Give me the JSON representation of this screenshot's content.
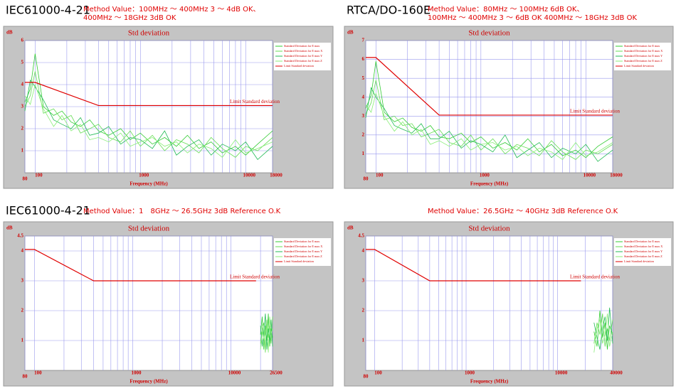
{
  "chart_data": [
    {
      "type": "line",
      "heading": "IEC61000-4-21",
      "subtitle": [
        "Method Value：100MHz ～ 400MHz 3 ～ 4dB OK、",
        "400MHz ～ 18GHz 3dB OK"
      ],
      "title": "Std deviation",
      "xlabel": "Frequency (MHz)",
      "ylabel": "dB",
      "xscale": "log",
      "grid": true,
      "xlim": [
        80,
        18000
      ],
      "xticks": [
        80,
        100,
        1000,
        10000,
        18000
      ],
      "minor_xticks": [
        200,
        300,
        400,
        500,
        600,
        700,
        800,
        900,
        2000,
        3000,
        4000,
        5000,
        6000,
        7000,
        8000,
        9000
      ],
      "ylim": [
        0,
        6
      ],
      "yticks": [
        1,
        2,
        3,
        4,
        5,
        6
      ],
      "x": [
        80,
        90,
        100,
        120,
        150,
        180,
        220,
        270,
        330,
        400,
        500,
        650,
        800,
        1000,
        1300,
        1700,
        2200,
        2800,
        3600,
        4700,
        6000,
        8000,
        10000,
        13000,
        18000
      ],
      "series": [
        {
          "name": "Standard Deviation for E max",
          "color": "#33cc33",
          "values": [
            3.2,
            3.8,
            5.4,
            3.0,
            2.6,
            2.8,
            2.3,
            2.1,
            2.4,
            1.9,
            1.7,
            2.0,
            1.5,
            1.8,
            1.3,
            1.6,
            1.2,
            1.7,
            1.1,
            1.4,
            0.9,
            1.2,
            0.8,
            1.3,
            1.9
          ]
        },
        {
          "name": "Standard Deviation for E max X",
          "color": "#66dd55",
          "values": [
            3.0,
            3.5,
            4.6,
            2.7,
            2.9,
            2.4,
            2.6,
            1.8,
            2.0,
            2.2,
            1.6,
            1.4,
            1.9,
            1.2,
            1.7,
            1.0,
            1.5,
            1.3,
            0.9,
            1.6,
            1.1,
            0.7,
            1.2,
            1.0,
            1.6
          ]
        },
        {
          "name": "Standard Deviation for E max Y",
          "color": "#22bb55",
          "values": [
            2.8,
            4.2,
            3.9,
            3.3,
            2.4,
            2.2,
            2.0,
            2.5,
            1.7,
            1.8,
            2.1,
            1.3,
            1.6,
            1.5,
            1.1,
            1.9,
            0.8,
            1.2,
            1.5,
            0.8,
            1.3,
            1.0,
            1.4,
            0.6,
            1.2
          ]
        },
        {
          "name": "Standard Deviation for E max Z",
          "color": "#88ee77",
          "values": [
            3.5,
            3.1,
            4.0,
            2.9,
            2.1,
            2.6,
            1.9,
            2.2,
            1.5,
            1.6,
            1.4,
            1.8,
            1.2,
            1.4,
            1.6,
            1.2,
            1.4,
            0.9,
            1.3,
            1.1,
            0.7,
            1.5,
            0.9,
            1.1,
            1.4
          ]
        }
      ],
      "limit": {
        "name": "Limit Standard deviation",
        "color": "#e00000",
        "x": [
          80,
          100,
          400,
          18000
        ],
        "values": [
          4.1,
          4.1,
          3.05,
          3.05
        ]
      },
      "annotation": "Limit Standard deviation"
    },
    {
      "type": "line",
      "heading": "RTCA/DO-160E",
      "subtitle": [
        "Method Value：80MHz ～ 100MHz 6dB OK、",
        "100MHz ～ 400MHz 3 ～ 6dB OK   400MHz ～ 18GHz 3dB OK"
      ],
      "title": "Std deviation",
      "xlabel": "Frequency (MHz)",
      "ylabel": "dB",
      "xscale": "log",
      "grid": true,
      "xlim": [
        80,
        18000
      ],
      "xticks": [
        80,
        100,
        1000,
        10000,
        18000
      ],
      "minor_xticks": [
        200,
        300,
        400,
        500,
        600,
        700,
        800,
        900,
        2000,
        3000,
        4000,
        5000,
        6000,
        7000,
        8000,
        9000
      ],
      "ylim": [
        0,
        7
      ],
      "yticks": [
        1,
        2,
        3,
        4,
        5,
        6,
        7
      ],
      "x": [
        80,
        90,
        100,
        120,
        150,
        180,
        220,
        270,
        330,
        400,
        500,
        650,
        800,
        1000,
        1300,
        1700,
        2200,
        2800,
        3600,
        4700,
        6000,
        8000,
        10000,
        13000,
        18000
      ],
      "series": [
        {
          "name": "Standard Deviation for E max",
          "color": "#33cc33",
          "values": [
            3.4,
            4.1,
            5.9,
            3.2,
            2.7,
            2.9,
            2.4,
            2.2,
            2.5,
            1.9,
            1.8,
            2.1,
            1.6,
            1.9,
            1.3,
            1.6,
            1.2,
            1.8,
            1.1,
            1.5,
            0.9,
            1.2,
            0.8,
            1.4,
            1.9
          ]
        },
        {
          "name": "Standard Deviation for E max X",
          "color": "#66dd55",
          "values": [
            3.1,
            3.7,
            4.9,
            2.8,
            3.0,
            2.5,
            2.6,
            1.9,
            2.1,
            2.3,
            1.6,
            1.4,
            2.0,
            1.2,
            1.8,
            1.0,
            1.5,
            1.3,
            0.9,
            1.7,
            1.1,
            0.7,
            1.2,
            1.0,
            1.5
          ]
        },
        {
          "name": "Standard Deviation for E max Y",
          "color": "#22bb55",
          "values": [
            2.9,
            4.5,
            4.0,
            3.4,
            2.5,
            2.3,
            2.1,
            2.6,
            1.8,
            1.8,
            2.2,
            1.3,
            1.7,
            1.5,
            1.1,
            2.0,
            0.8,
            1.2,
            1.6,
            0.8,
            1.3,
            1.0,
            1.5,
            0.6,
            1.2
          ]
        },
        {
          "name": "Standard Deviation for E max Z",
          "color": "#88ee77",
          "values": [
            3.6,
            3.2,
            4.2,
            3.0,
            2.2,
            2.7,
            2.0,
            2.3,
            1.5,
            1.7,
            1.4,
            1.8,
            1.2,
            1.5,
            1.6,
            1.2,
            1.4,
            0.9,
            1.3,
            1.1,
            0.7,
            1.6,
            0.9,
            1.1,
            1.6
          ]
        }
      ],
      "limit": {
        "name": "Limit Standard deviation",
        "color": "#e00000",
        "x": [
          80,
          100,
          400,
          18000
        ],
        "values": [
          6.1,
          6.1,
          3.05,
          3.05
        ]
      },
      "annotation": "Limit Standard deviation"
    },
    {
      "type": "line",
      "heading": "IEC61000-4-21",
      "subtitle": [
        "Method Value：1　8GHz ～ 26.5GHz 3dB Reference O.K"
      ],
      "title": "Std deviation",
      "xlabel": "Frequency (MHz)",
      "ylabel": "dB",
      "xscale": "log",
      "grid": true,
      "xlim": [
        80,
        26500
      ],
      "xticks": [
        80,
        100,
        1000,
        10000,
        26500
      ],
      "minor_xticks": [
        200,
        300,
        400,
        500,
        600,
        700,
        800,
        900,
        2000,
        3000,
        4000,
        5000,
        6000,
        7000,
        8000,
        9000,
        20000
      ],
      "ylim": [
        0,
        4.5
      ],
      "yticks": [
        1,
        2,
        3,
        4,
        4.5
      ],
      "x": [
        20000,
        20800,
        21600,
        22400,
        23200,
        24000,
        24800,
        25600,
        26500
      ],
      "series": [
        {
          "name": "Standard Deviation for E max",
          "color": "#33cc33",
          "values": [
            1.2,
            1.8,
            0.7,
            1.5,
            1.0,
            1.9,
            0.8,
            1.4,
            1.1
          ]
        },
        {
          "name": "Standard Deviation for E max X",
          "color": "#66dd55",
          "values": [
            0.9,
            1.4,
            1.6,
            0.6,
            1.7,
            1.1,
            1.5,
            0.9,
            1.8
          ]
        },
        {
          "name": "Standard Deviation for E max Y",
          "color": "#22bb55",
          "values": [
            1.5,
            0.8,
            1.3,
            1.9,
            0.7,
            1.4,
            1.0,
            1.7,
            0.8
          ]
        },
        {
          "name": "Standard Deviation for E max Z",
          "color": "#88ee77",
          "values": [
            0.7,
            1.3,
            1.0,
            1.2,
            1.6,
            0.6,
            1.8,
            1.2,
            1.4
          ]
        }
      ],
      "limit": {
        "name": "Limit Standard deviation",
        "color": "#e00000",
        "x": [
          80,
          100,
          400,
          18000
        ],
        "values": [
          4.05,
          4.05,
          3.0,
          3.0
        ]
      },
      "annotation": "Limit Standard deviation"
    },
    {
      "type": "line",
      "subtitle": [
        "Method Value：26.5GHz ～ 40GHz 3dB Reference O.K"
      ],
      "title": "Std deviation",
      "xlabel": "Frequency (MHz)",
      "ylabel": "dB",
      "xscale": "log",
      "grid": true,
      "xlim": [
        80,
        40000
      ],
      "xticks": [
        80,
        100,
        1000,
        10000,
        40000
      ],
      "minor_xticks": [
        200,
        300,
        400,
        500,
        600,
        700,
        800,
        900,
        2000,
        3000,
        4000,
        5000,
        6000,
        7000,
        8000,
        9000,
        20000,
        30000
      ],
      "ylim": [
        0,
        4.5
      ],
      "yticks": [
        1,
        2,
        3,
        4,
        4.5
      ],
      "x": [
        25000,
        27000,
        29000,
        31000,
        33000,
        35000,
        37000,
        40000
      ],
      "series": [
        {
          "name": "Standard Deviation for E max",
          "color": "#33cc33",
          "values": [
            1.3,
            0.8,
            2.0,
            1.1,
            1.6,
            0.7,
            1.5,
            1.2
          ]
        },
        {
          "name": "Standard Deviation for E max X",
          "color": "#66dd55",
          "values": [
            0.9,
            1.6,
            1.2,
            1.9,
            0.8,
            1.4,
            1.0,
            1.7
          ]
        },
        {
          "name": "Standard Deviation for E max Y",
          "color": "#22bb55",
          "values": [
            1.6,
            1.1,
            0.7,
            1.4,
            1.8,
            1.0,
            2.1,
            0.9
          ]
        },
        {
          "name": "Standard Deviation for E max Z",
          "color": "#88ee77",
          "values": [
            0.6,
            1.4,
            1.7,
            0.9,
            1.2,
            1.9,
            0.8,
            1.3
          ]
        }
      ],
      "limit": {
        "name": "Limit Standard deviation",
        "color": "#e00000",
        "x": [
          80,
          100,
          400,
          18000
        ],
        "values": [
          4.05,
          4.05,
          3.0,
          3.0
        ]
      },
      "annotation": "Limit Standard deviation"
    }
  ]
}
